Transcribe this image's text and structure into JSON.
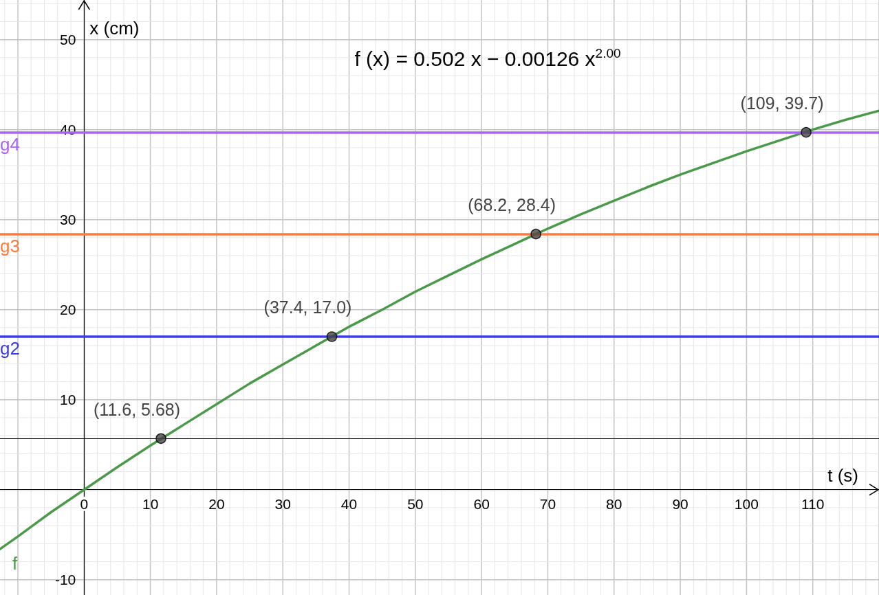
{
  "chart_data": {
    "type": "line",
    "xlabel": "t (s)",
    "ylabel": "x (cm)",
    "annotations": [
      "f (x) = 0.502 x − 0.00126 x$^{2.00}$",
      {
        "text": "(11.6, 5.68)",
        "x": 11.6,
        "y": 5.68
      },
      {
        "text": "(37.4, 17.0)",
        "x": 37.4,
        "y": 17.0
      },
      {
        "text": "(68.2, 28.4)",
        "x": 68.2,
        "y": 28.4
      },
      {
        "text": "(109, 39.7)",
        "x": 109,
        "y": 39.7
      }
    ],
    "series": [
      {
        "name": "f",
        "color": "#4a9a4a",
        "marker": "none",
        "x": [
          -12.7,
          -10,
          -5,
          0,
          5,
          10,
          15,
          20,
          25,
          30,
          35,
          40,
          45,
          50,
          55,
          60,
          65,
          70,
          75,
          80,
          85,
          90,
          95,
          100,
          105,
          110,
          115,
          120
        ],
        "values": [
          -6.6,
          -5.2,
          -2.5,
          0,
          2.5,
          4.9,
          7.2,
          9.5,
          11.8,
          13.9,
          16.0,
          18.1,
          20.0,
          22.0,
          23.8,
          25.6,
          27.3,
          29.0,
          30.6,
          32.1,
          33.6,
          35.0,
          36.3,
          37.6,
          38.8,
          40.0,
          41.1,
          42.1
        ]
      },
      {
        "type": "scatter",
        "color": "#444444",
        "marker": "circle",
        "x": [
          11.6,
          37.4,
          68.2,
          109
        ],
        "values": [
          5.68,
          17.0,
          28.4,
          39.7
        ]
      }
    ],
    "ref_lines": [
      {
        "axis": "y",
        "value": 5.68,
        "color": "#000000"
      },
      {
        "axis": "y",
        "value": 17.0,
        "label": "g2",
        "color": "#3b3bea"
      },
      {
        "axis": "y",
        "value": 28.4,
        "label": "g3",
        "color": "#ff7a3d"
      },
      {
        "axis": "y",
        "value": 39.7,
        "label": "g4",
        "color": "#a865f5"
      }
    ],
    "xlim": [
      -12.7,
      120
    ],
    "ylim": [
      -11.7,
      54.4
    ],
    "xticks": [
      0,
      10,
      20,
      30,
      40,
      50,
      60,
      70,
      80,
      90,
      100,
      110
    ],
    "yticks": [
      -10,
      {
        "value": 0,
        "label": null
      },
      10,
      20,
      30,
      40,
      50
    ],
    "grid": true,
    "line_style": "solid"
  }
}
